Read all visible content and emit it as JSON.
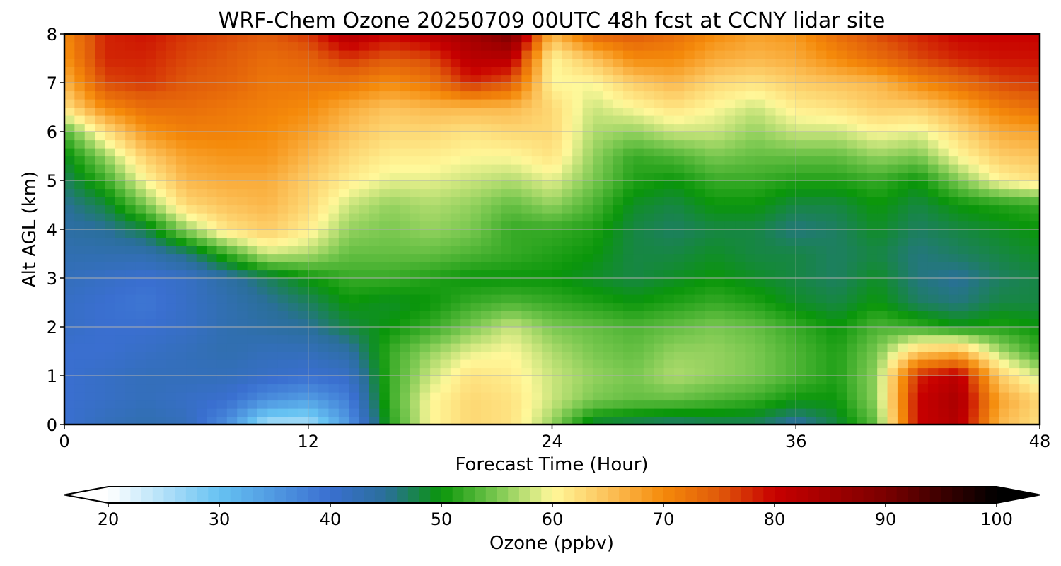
{
  "chart_data": {
    "type": "heatmap",
    "title": "WRF-Chem Ozone  20250709 00UTC 48h fcst at CCNY lidar site",
    "xlabel": "Forecast Time (Hour)",
    "ylabel": "Alt AGL (km)",
    "xlim": [
      0,
      48
    ],
    "ylim": [
      0,
      8
    ],
    "x_ticks": [
      0,
      12,
      24,
      36,
      48
    ],
    "y_ticks": [
      0,
      1,
      2,
      3,
      4,
      5,
      6,
      7,
      8
    ],
    "grid": true,
    "colorbar": {
      "label": "Ozone  (ppbv)",
      "range": [
        20,
        100
      ],
      "ticks": [
        20,
        30,
        40,
        50,
        60,
        70,
        80,
        90,
        100
      ],
      "extend": "both",
      "colormap": [
        [
          20,
          "#ffffff"
        ],
        [
          30,
          "#66c2f2"
        ],
        [
          40,
          "#3a6fd0"
        ],
        [
          45,
          "#2a6f9a"
        ],
        [
          50,
          "#0a960a"
        ],
        [
          55,
          "#7ac850"
        ],
        [
          60,
          "#fff89a"
        ],
        [
          65,
          "#fcc25a"
        ],
        [
          70,
          "#f58a0a"
        ],
        [
          75,
          "#e05a0a"
        ],
        [
          80,
          "#c80000"
        ],
        [
          90,
          "#7a0000"
        ],
        [
          100,
          "#000000"
        ]
      ]
    },
    "x_hours": [
      0,
      2,
      4,
      6,
      8,
      10,
      12,
      14,
      16,
      18,
      20,
      22,
      24,
      26,
      28,
      30,
      32,
      34,
      36,
      38,
      40,
      42,
      44,
      46,
      48
    ],
    "alt_km": [
      0,
      0.5,
      1,
      1.5,
      2,
      2.5,
      3,
      3.5,
      4,
      4.5,
      5,
      5.5,
      6,
      6.5,
      7,
      7.5,
      8
    ],
    "ozone_ppbv": [
      [
        40,
        42,
        43,
        42,
        36,
        25,
        25,
        35,
        51,
        60,
        63,
        62,
        56,
        48,
        47,
        46,
        47,
        47,
        44,
        48,
        54,
        80,
        83,
        66,
        62
      ],
      [
        40,
        41,
        42,
        41,
        40,
        36,
        34,
        38,
        52,
        60,
        63,
        62,
        58,
        55,
        54,
        54,
        53,
        52,
        50,
        50,
        56,
        80,
        84,
        68,
        63
      ],
      [
        40,
        41,
        42,
        42,
        42,
        41,
        40,
        41,
        52,
        58,
        62,
        61,
        58,
        56,
        55,
        57,
        56,
        55,
        53,
        51,
        56,
        78,
        82,
        64,
        58
      ],
      [
        40,
        40,
        41,
        42,
        43,
        42,
        42,
        44,
        52,
        56,
        59,
        60,
        57,
        55,
        54,
        56,
        56,
        55,
        53,
        51,
        55,
        64,
        66,
        57,
        52
      ],
      [
        41,
        40,
        40,
        41,
        43,
        44,
        45,
        48,
        50,
        52,
        55,
        58,
        55,
        54,
        53,
        54,
        55,
        54,
        52,
        50,
        53,
        52,
        50,
        51,
        50
      ],
      [
        41,
        40,
        39,
        41,
        43,
        45,
        47,
        50,
        49,
        50,
        52,
        53,
        52,
        51,
        50,
        51,
        52,
        51,
        49,
        48,
        50,
        47,
        46,
        48,
        48
      ],
      [
        42,
        41,
        40,
        41,
        44,
        47,
        50,
        52,
        52,
        51,
        50,
        50,
        50,
        49,
        48,
        49,
        50,
        49,
        48,
        47,
        49,
        46,
        45,
        47,
        48
      ],
      [
        43,
        43,
        43,
        46,
        52,
        58,
        57,
        54,
        54,
        54,
        53,
        52,
        51,
        50,
        48,
        48,
        49,
        48,
        48,
        47,
        48,
        46,
        47,
        48,
        49
      ],
      [
        44,
        45,
        48,
        56,
        62,
        64,
        61,
        56,
        55,
        56,
        55,
        52,
        52,
        51,
        48,
        47,
        48,
        48,
        46,
        47,
        49,
        47,
        48,
        49,
        50
      ],
      [
        45,
        48,
        55,
        63,
        65,
        66,
        63,
        58,
        56,
        57,
        56,
        54,
        56,
        53,
        49,
        48,
        50,
        50,
        48,
        48,
        50,
        48,
        50,
        51,
        52
      ],
      [
        47,
        52,
        60,
        66,
        67,
        67,
        64,
        61,
        59,
        59,
        58,
        57,
        59,
        55,
        51,
        50,
        52,
        52,
        51,
        51,
        52,
        50,
        55,
        60,
        62
      ],
      [
        49,
        56,
        64,
        68,
        69,
        69,
        66,
        63,
        61,
        61,
        60,
        60,
        62,
        56,
        52,
        53,
        55,
        54,
        54,
        54,
        56,
        55,
        60,
        64,
        65
      ],
      [
        53,
        62,
        69,
        71,
        71,
        70,
        68,
        65,
        63,
        63,
        62,
        63,
        63,
        57,
        56,
        58,
        58,
        56,
        58,
        58,
        60,
        59,
        63,
        67,
        68
      ],
      [
        62,
        70,
        73,
        73,
        72,
        71,
        70,
        67,
        65,
        66,
        66,
        66,
        63,
        58,
        60,
        62,
        60,
        58,
        61,
        62,
        64,
        64,
        67,
        71,
        73
      ],
      [
        66,
        76,
        77,
        75,
        74,
        72,
        72,
        72,
        70,
        72,
        78,
        75,
        60,
        60,
        64,
        66,
        63,
        62,
        64,
        65,
        66,
        70,
        73,
        76,
        77
      ],
      [
        69,
        78,
        78,
        76,
        75,
        73,
        74,
        77,
        75,
        76,
        82,
        82,
        60,
        65,
        70,
        70,
        67,
        66,
        67,
        70,
        73,
        76,
        78,
        79,
        79
      ],
      [
        70,
        78,
        79,
        77,
        76,
        75,
        77,
        83,
        80,
        82,
        85,
        90,
        66,
        74,
        75,
        73,
        70,
        68,
        69,
        73,
        76,
        78,
        80,
        80,
        80
      ]
    ]
  }
}
